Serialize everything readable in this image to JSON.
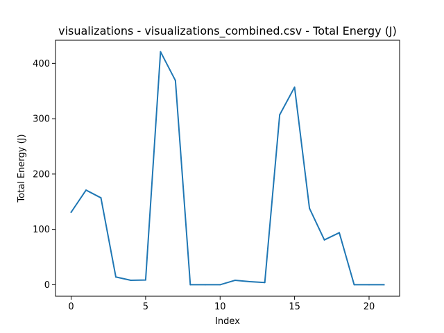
{
  "chart_data": {
    "type": "line",
    "title": "visualizations - visualizations_combined.csv - Total Energy (J)",
    "xlabel": "Index",
    "ylabel": "Total Energy (J)",
    "xlim": [
      -1.05,
      22.05
    ],
    "ylim": [
      -20.8,
      441.8
    ],
    "x_ticks": [
      0,
      5,
      10,
      15,
      20
    ],
    "y_ticks": [
      0,
      100,
      200,
      300,
      400
    ],
    "grid": false,
    "legend": "none",
    "series": [
      {
        "color": "#1f77b4",
        "x": [
          0,
          1,
          2,
          3,
          4,
          5,
          6,
          7,
          8,
          9,
          10,
          11,
          12,
          13,
          14,
          15,
          16,
          17,
          18,
          19,
          20,
          21
        ],
        "values": [
          131,
          171,
          157,
          14,
          8,
          8.5,
          421,
          369,
          0,
          0,
          0,
          8,
          5.5,
          4,
          307,
          357,
          138,
          81,
          94,
          0,
          0,
          0
        ]
      }
    ]
  }
}
